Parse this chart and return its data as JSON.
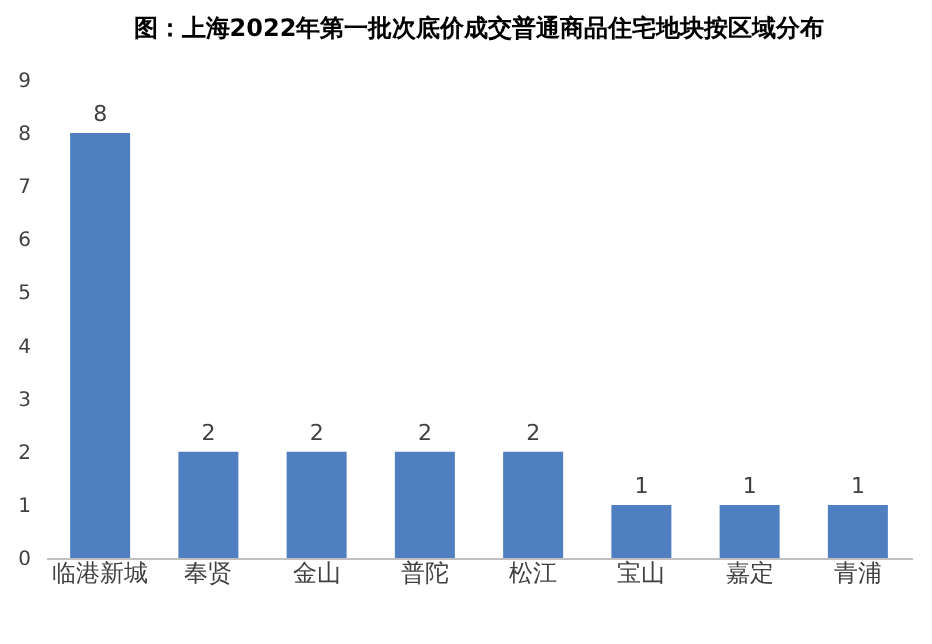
{
  "chart_data": {
    "type": "bar",
    "title": "图：上海2022年第一批次底价成交普通商品住宅地块按区域分布",
    "categories": [
      "临港新城",
      "奉贤",
      "金山",
      "普陀",
      "松江",
      "宝山",
      "嘉定",
      "青浦"
    ],
    "values": [
      8,
      2,
      2,
      2,
      2,
      1,
      1,
      1
    ],
    "color": "#4f7fc0",
    "ylim": [
      0,
      9
    ],
    "yticks": [
      0,
      1,
      2,
      3,
      4,
      5,
      6,
      7,
      8,
      9
    ],
    "grid": false,
    "data_labels": true
  }
}
